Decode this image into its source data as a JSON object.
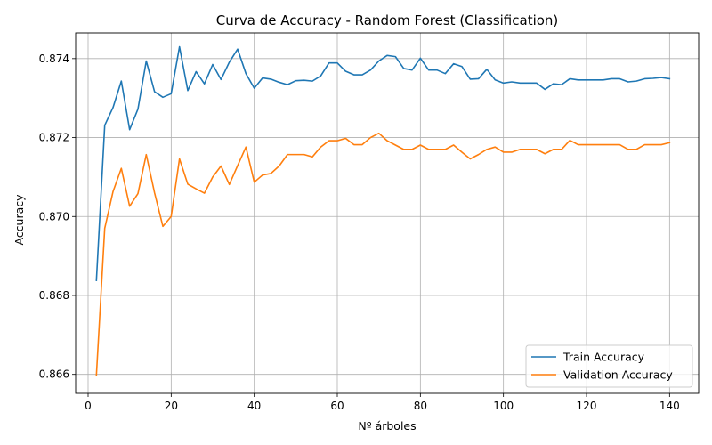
{
  "chart_data": {
    "type": "line",
    "title": "Curva de Accuracy - Random Forest (Classification)",
    "xlabel": "Nº árboles",
    "ylabel": "Accuracy",
    "xlim": [
      -3,
      147
    ],
    "ylim": [
      0.86552,
      0.87465
    ],
    "xticks": [
      0,
      20,
      40,
      60,
      80,
      100,
      120,
      140
    ],
    "yticks": [
      0.866,
      0.868,
      0.87,
      0.872,
      0.874
    ],
    "ytick_labels": [
      "0.866",
      "0.868",
      "0.870",
      "0.872",
      "0.874"
    ],
    "grid": true,
    "legend_position": "lower-right",
    "x": [
      2,
      4,
      6,
      8,
      10,
      12,
      14,
      16,
      18,
      20,
      22,
      24,
      26,
      28,
      30,
      32,
      34,
      36,
      38,
      40,
      42,
      44,
      46,
      48,
      50,
      52,
      54,
      56,
      58,
      60,
      62,
      64,
      66,
      68,
      70,
      72,
      74,
      76,
      78,
      80,
      82,
      84,
      86,
      88,
      90,
      92,
      94,
      96,
      98,
      100,
      102,
      104,
      106,
      108,
      110,
      112,
      114,
      116,
      118,
      120,
      122,
      124,
      126,
      128,
      130,
      132,
      134,
      136,
      138,
      140
    ],
    "series": [
      {
        "name": "Train Accuracy",
        "color": "#1f77b4",
        "values": [
          0.86838,
          0.87231,
          0.87276,
          0.87343,
          0.8722,
          0.87272,
          0.87394,
          0.87316,
          0.87302,
          0.87311,
          0.8743,
          0.87319,
          0.87367,
          0.87336,
          0.87385,
          0.87347,
          0.87391,
          0.87424,
          0.87362,
          0.87325,
          0.87351,
          0.87348,
          0.8734,
          0.87334,
          0.87344,
          0.87345,
          0.87343,
          0.87356,
          0.87389,
          0.87389,
          0.87368,
          0.87359,
          0.87359,
          0.87371,
          0.87394,
          0.87408,
          0.87405,
          0.87375,
          0.87371,
          0.87401,
          0.87371,
          0.87371,
          0.87362,
          0.87387,
          0.8738,
          0.87348,
          0.87349,
          0.87373,
          0.87346,
          0.87338,
          0.87341,
          0.87338,
          0.87338,
          0.87338,
          0.87322,
          0.87336,
          0.87334,
          0.87349,
          0.87346,
          0.87346,
          0.87346,
          0.87346,
          0.87349,
          0.87349,
          0.87341,
          0.87343,
          0.87349,
          0.8735,
          0.87352,
          0.87349
        ]
      },
      {
        "name": "Validation Accuracy",
        "color": "#ff7f0e",
        "values": [
          0.86598,
          0.8697,
          0.87063,
          0.87122,
          0.87026,
          0.87058,
          0.87157,
          0.8706,
          0.86975,
          0.87,
          0.87146,
          0.87082,
          0.8707,
          0.87059,
          0.871,
          0.87128,
          0.87081,
          0.87129,
          0.87176,
          0.87087,
          0.87105,
          0.87109,
          0.87128,
          0.87157,
          0.87157,
          0.87157,
          0.87151,
          0.87176,
          0.87192,
          0.87192,
          0.87198,
          0.87182,
          0.87182,
          0.872,
          0.87211,
          0.87192,
          0.87181,
          0.8717,
          0.8717,
          0.87181,
          0.8717,
          0.8717,
          0.8717,
          0.87181,
          0.87163,
          0.87146,
          0.87157,
          0.8717,
          0.87176,
          0.87163,
          0.87163,
          0.8717,
          0.8717,
          0.8717,
          0.87159,
          0.8717,
          0.8717,
          0.87193,
          0.87182,
          0.87182,
          0.87182,
          0.87182,
          0.87182,
          0.87182,
          0.8717,
          0.8717,
          0.87182,
          0.87182,
          0.87182,
          0.87187
        ]
      }
    ]
  }
}
